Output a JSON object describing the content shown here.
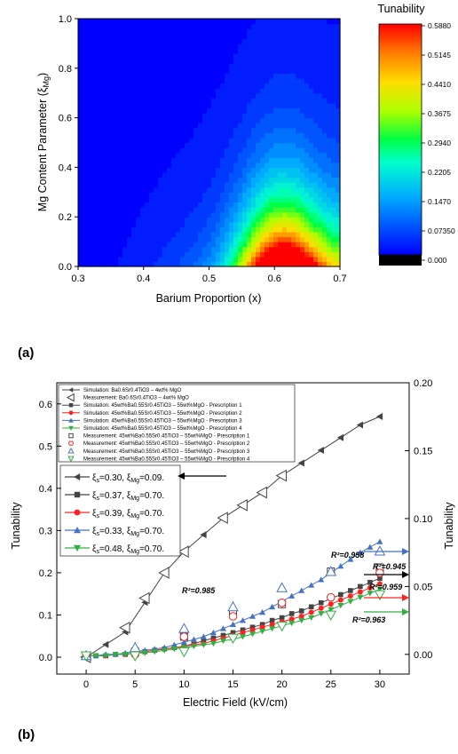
{
  "panel_labels": {
    "a": "(a)",
    "b": "(b)"
  },
  "colors": {
    "sim0": "#444444",
    "exp1": "#4472c4",
    "exp2": "#ff2020",
    "exp3": "#30b040",
    "arrow_blue": "#4472c4",
    "arrow_black": "#000000",
    "arrow_red": "#ff2020",
    "arrow_green": "#30b040"
  },
  "chart_data": [
    {
      "type": "heatmap",
      "title": "",
      "xlabel": "Barium Proportion (x)",
      "ylabel": "Mg Content Parameter (ξ_Mg)",
      "ylabel_main": "Mg Content Parameter (ξ",
      "ylabel_sub": "Mg",
      "ylabel_close": ")",
      "xlim": [
        0.3,
        0.7
      ],
      "ylim": [
        0.0,
        1.0
      ],
      "xticks": [
        "0.3",
        "0.4",
        "0.5",
        "0.6",
        "0.7"
      ],
      "yticks": [
        "0.0",
        "0.2",
        "0.4",
        "0.6",
        "0.8",
        "1.0"
      ],
      "colorbar": {
        "title": "Tunability",
        "ticks": [
          "0.000",
          "0.07350",
          "0.1470",
          "0.2205",
          "0.2940",
          "0.3675",
          "0.4410",
          "0.5145",
          "0.5880"
        ],
        "range": [
          0,
          0.588
        ]
      }
    },
    {
      "type": "scatter",
      "xlabel": "Electric Field (kV/cm)",
      "ylabel_left": "Tunability",
      "ylabel_right": "Tunability",
      "xlim": [
        -3,
        33
      ],
      "ylim_left": [
        -0.04,
        0.65
      ],
      "ylim_right": [
        -0.0145,
        0.2
      ],
      "xticks": [
        "0",
        "5",
        "10",
        "15",
        "20",
        "25",
        "30"
      ],
      "yticks_left": [
        "0.0",
        "0.1",
        "0.2",
        "0.3",
        "0.4",
        "0.5",
        "0.6"
      ],
      "yticks_right": [
        "0.00",
        "0.05",
        "0.10",
        "0.15",
        "0.20"
      ],
      "legend_top": [
        "Simulation: Ba0.6Sr0.4TiO3 – 4wt% MgO",
        "Measurement: Ba0.6Sr0.4TiO3 – 4wt% MgO",
        "Simulation: 45wt%Ba0.55Sr0.45TiO3 – 55wt%MgO - Prescription 1",
        "Simulation: 45wt%Ba0.55Sr0.45TiO3 – 55wt%MgO - Prescription 2",
        "Simulation: 45wt%Ba0.55Sr0.45TiO3 – 55wt%MgO - Prescription 3",
        "Simulation: 45wt%Ba0.55Sr0.45TiO3 – 55wt%MgO - Prescription 4",
        "Measurement: 45wt%Ba0.55Sr0.45TiO3 – 55wt%MgO - Prescription 1",
        "Measurement: 45wt%Ba0.55Sr0.45TiO3 – 55wt%MgO - Prescription 2",
        "Measurement: 45wt%Ba0.55Sr0.45TiO3 – 55wt%MgO - Prescription 3",
        "Measurement: 45wt%Ba0.55Sr0.45TiO3 – 55wt%MgO - Prescription 4"
      ],
      "legend_params": [
        {
          "xs": "0.30",
          "xmg": "0.09."
        },
        {
          "xs": "0.37",
          "xmg": "0.70."
        },
        {
          "xs": "0.39",
          "xmg": "0.70."
        },
        {
          "xs": "0.33",
          "xmg": "0.70."
        },
        {
          "xs": "0.48",
          "xmg": "0.70."
        }
      ],
      "annotations": [
        "R²=0.985",
        "R²=0.958",
        "R²=0.945",
        "R²=0.959",
        "R²=0.963"
      ],
      "series": [
        {
          "axis": "left",
          "x": [
            0,
            2,
            4,
            6,
            8,
            10,
            12,
            14,
            16,
            18,
            20,
            22,
            24,
            26,
            28,
            30
          ],
          "values": [
            0.0,
            0.03,
            0.06,
            0.13,
            0.2,
            0.25,
            0.29,
            0.33,
            0.36,
            0.39,
            0.43,
            0.46,
            0.49,
            0.52,
            0.55,
            0.57
          ]
        },
        {
          "axis": "left",
          "x": [
            0,
            4,
            6,
            8,
            10,
            14,
            16,
            18,
            20
          ],
          "values": [
            0.0,
            0.07,
            0.14,
            0.2,
            0.25,
            0.33,
            0.36,
            0.39,
            0.43
          ]
        },
        {
          "axis": "right",
          "x": [
            0,
            1,
            2,
            3,
            4,
            5,
            6,
            7,
            8,
            9,
            10,
            11,
            12,
            13,
            14,
            15,
            16,
            17,
            18,
            19,
            20,
            21,
            22,
            23,
            24,
            25,
            26,
            27,
            28,
            29,
            30
          ],
          "values": [
            -0.001,
            -0.001,
            -0.001,
            0.0,
            0.0,
            0.001,
            0.002,
            0.003,
            0.004,
            0.005,
            0.006,
            0.008,
            0.01,
            0.012,
            0.014,
            0.016,
            0.018,
            0.02,
            0.022,
            0.025,
            0.027,
            0.03,
            0.032,
            0.035,
            0.038,
            0.041,
            0.044,
            0.047,
            0.05,
            0.053,
            0.056
          ]
        },
        {
          "axis": "right",
          "x": [
            0,
            1,
            2,
            3,
            4,
            5,
            6,
            7,
            8,
            9,
            10,
            11,
            12,
            13,
            14,
            15,
            16,
            17,
            18,
            19,
            20,
            21,
            22,
            23,
            24,
            25,
            26,
            27,
            28,
            29,
            30
          ],
          "values": [
            -0.001,
            -0.001,
            -0.001,
            0.0,
            0.0,
            0.001,
            0.002,
            0.003,
            0.004,
            0.005,
            0.006,
            0.007,
            0.008,
            0.01,
            0.012,
            0.014,
            0.016,
            0.018,
            0.02,
            0.022,
            0.024,
            0.026,
            0.028,
            0.031,
            0.034,
            0.037,
            0.04,
            0.043,
            0.046,
            0.049,
            0.052
          ]
        },
        {
          "axis": "right",
          "x": [
            0,
            1,
            2,
            3,
            4,
            5,
            6,
            7,
            8,
            9,
            10,
            11,
            12,
            13,
            14,
            15,
            16,
            17,
            18,
            19,
            20,
            21,
            22,
            23,
            24,
            25,
            26,
            27,
            28,
            29,
            30
          ],
          "values": [
            -0.001,
            -0.001,
            0.0,
            0.0,
            0.001,
            0.002,
            0.003,
            0.004,
            0.005,
            0.007,
            0.009,
            0.011,
            0.013,
            0.016,
            0.019,
            0.022,
            0.025,
            0.028,
            0.031,
            0.035,
            0.039,
            0.043,
            0.047,
            0.051,
            0.055,
            0.06,
            0.065,
            0.07,
            0.075,
            0.079,
            0.083
          ]
        },
        {
          "axis": "right",
          "x": [
            0,
            1,
            2,
            3,
            4,
            5,
            6,
            7,
            8,
            9,
            10,
            11,
            12,
            13,
            14,
            15,
            16,
            17,
            18,
            19,
            20,
            21,
            22,
            23,
            24,
            25,
            26,
            27,
            28,
            29,
            30
          ],
          "values": [
            -0.001,
            -0.001,
            -0.001,
            0.0,
            0.0,
            0.001,
            0.001,
            0.002,
            0.003,
            0.004,
            0.005,
            0.006,
            0.007,
            0.008,
            0.01,
            0.011,
            0.013,
            0.015,
            0.017,
            0.019,
            0.021,
            0.023,
            0.025,
            0.027,
            0.03,
            0.033,
            0.036,
            0.039,
            0.042,
            0.045,
            0.048
          ]
        },
        {
          "axis": "right",
          "x": [
            0,
            5,
            10,
            15,
            20,
            25,
            30
          ],
          "values": [
            -0.001,
            0.002,
            0.013,
            0.031,
            0.037,
            0.061,
            0.064
          ]
        },
        {
          "axis": "right",
          "x": [
            0,
            5,
            10,
            15,
            20,
            25,
            30
          ],
          "values": [
            -0.001,
            0.0,
            0.013,
            0.028,
            0.038,
            0.042,
            0.06
          ]
        },
        {
          "axis": "right",
          "x": [
            0,
            5,
            10,
            15,
            20,
            25,
            30
          ],
          "values": [
            -0.001,
            0.005,
            0.019,
            0.035,
            0.049,
            0.061,
            0.076
          ]
        },
        {
          "axis": "right",
          "x": [
            0,
            5,
            10,
            15,
            20,
            25,
            30
          ],
          "values": [
            -0.001,
            -0.001,
            0.002,
            0.012,
            0.021,
            0.029,
            0.044
          ]
        }
      ]
    }
  ]
}
